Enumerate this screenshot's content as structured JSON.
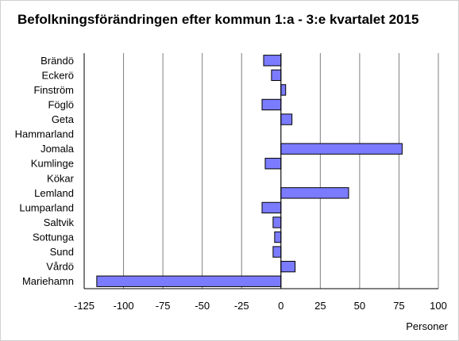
{
  "chart_data": {
    "type": "bar",
    "orientation": "horizontal",
    "title": "Befolkningsförändringen efter kommun 1:a - 3:e kvartalet 2015",
    "xlabel": "Personer",
    "ylabel": "",
    "categories": [
      "Brändö",
      "Eckerö",
      "Finström",
      "Föglö",
      "Geta",
      "Hammarland",
      "Jomala",
      "Kumlinge",
      "Kökar",
      "Lemland",
      "Lumparland",
      "Saltvik",
      "Sottunga",
      "Sund",
      "Vårdö",
      "Mariehamn"
    ],
    "values": [
      -11,
      -6,
      3,
      -12,
      7,
      0,
      77,
      -10,
      0,
      43,
      -12,
      -5,
      -4,
      -5,
      9,
      -117
    ],
    "xlim": [
      -125,
      100
    ],
    "xticks": [
      "-125",
      "-100",
      "-75",
      "-50",
      "-25",
      "0",
      "25",
      "50",
      "75",
      "100"
    ],
    "grid": true,
    "bar_color": "#7b7bff"
  }
}
